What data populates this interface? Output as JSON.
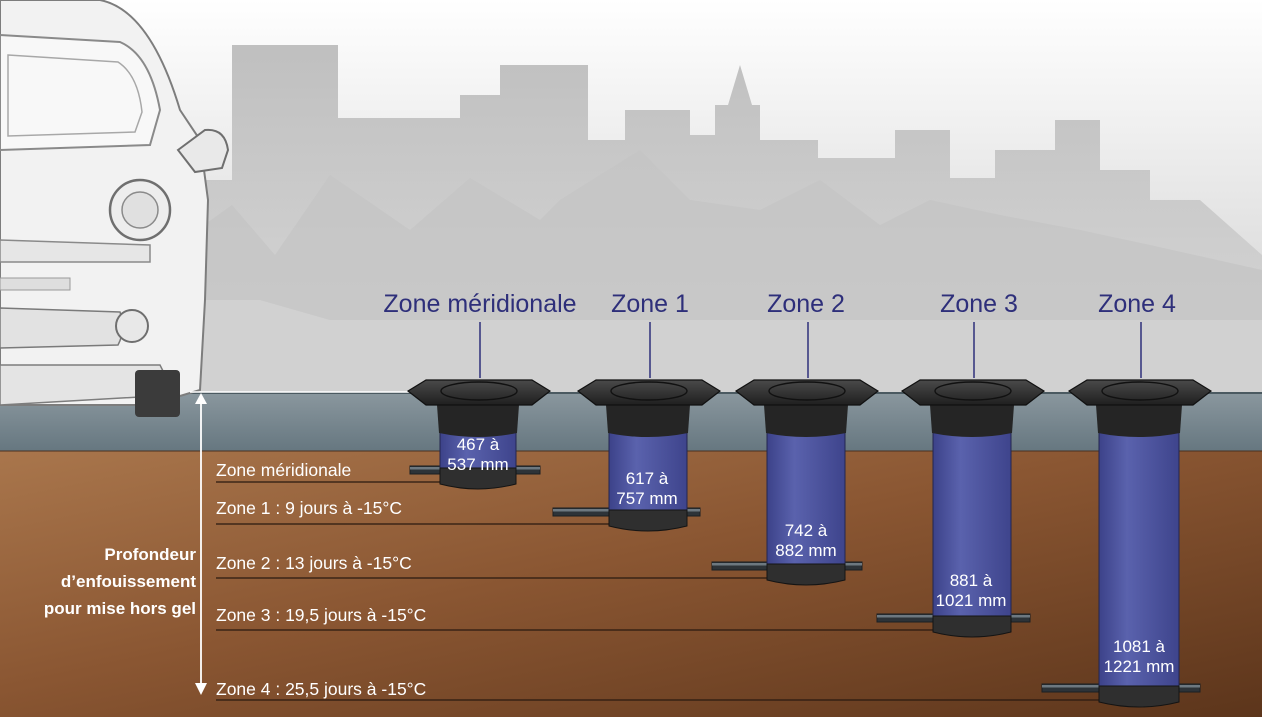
{
  "zones": [
    {
      "title": "Zone méridionale",
      "depth_label": "Zone méridionale",
      "measure_line1": "467 à",
      "measure_line2": "537 mm",
      "min_depth_mm": 467,
      "max_depth_mm": 537
    },
    {
      "title": "Zone 1",
      "depth_label": "Zone 1 : 9 jours à -15°C",
      "measure_line1": "617 à",
      "measure_line2": "757 mm",
      "min_depth_mm": 617,
      "max_depth_mm": 757
    },
    {
      "title": "Zone 2",
      "depth_label": "Zone 2 : 13 jours à -15°C",
      "measure_line1": "742 à",
      "measure_line2": "882 mm",
      "min_depth_mm": 742,
      "max_depth_mm": 882
    },
    {
      "title": "Zone 3",
      "depth_label": "Zone 3 : 19,5 jours à -15°C",
      "measure_line1": "881 à",
      "measure_line2": "1021 mm",
      "min_depth_mm": 881,
      "max_depth_mm": 1021
    },
    {
      "title": "Zone 4",
      "depth_label": "Zone 4 : 25,5 jours à -15°C",
      "measure_line1": "1081 à",
      "measure_line2": "1221 mm",
      "min_depth_mm": 1081,
      "max_depth_mm": 1221
    }
  ],
  "side_label": {
    "line1": "Profondeur",
    "line2": "d’enfouissement",
    "line3": "pour mise hors gel"
  },
  "colors": {
    "title_text": "#2e2f7a",
    "pipe_blue": "#4f56a0",
    "soil": "#7a4a28",
    "road": "#6f7f88",
    "cap": "#2e2e2e"
  }
}
